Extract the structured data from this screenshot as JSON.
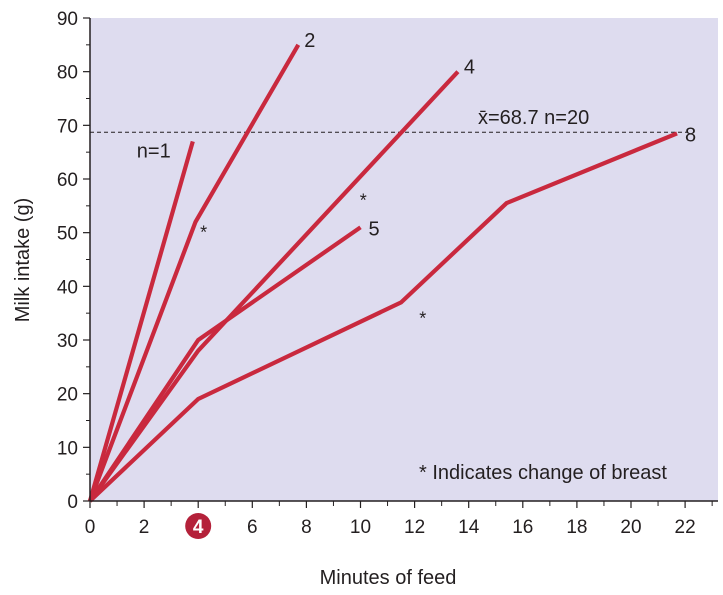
{
  "chart_data": {
    "type": "line",
    "xlabel": "Minutes of feed",
    "ylabel": "Milk intake (g)",
    "xlim": [
      0,
      23
    ],
    "ylim": [
      0,
      90
    ],
    "x_ticks": [
      0,
      2,
      4,
      6,
      8,
      10,
      12,
      14,
      16,
      18,
      20,
      22
    ],
    "y_ticks": [
      0,
      10,
      20,
      30,
      40,
      50,
      60,
      70,
      80,
      90
    ],
    "highlighted_x_tick": 4,
    "grid": false,
    "series": [
      {
        "name": "n=1",
        "points": [
          [
            0,
            0
          ],
          [
            3.8,
            67
          ]
        ]
      },
      {
        "name": "2",
        "points": [
          [
            0,
            0
          ],
          [
            3.9,
            52
          ],
          [
            7.7,
            85
          ]
        ]
      },
      {
        "name": "4",
        "points": [
          [
            0,
            0
          ],
          [
            4.0,
            28
          ],
          [
            13.6,
            80
          ]
        ]
      },
      {
        "name": "5",
        "points": [
          [
            0,
            0
          ],
          [
            4.0,
            30
          ],
          [
            10.0,
            51
          ]
        ]
      },
      {
        "name": "8",
        "points": [
          [
            0,
            0
          ],
          [
            4.0,
            19
          ],
          [
            11.5,
            37
          ],
          [
            15.4,
            55.5
          ],
          [
            21.7,
            68.5
          ]
        ]
      }
    ],
    "reference_line": {
      "y": 68.7,
      "style": "dashed",
      "label": "x̄=68.7  n=20"
    },
    "breast_change_markers": [
      {
        "x": 4.2,
        "y": 50,
        "text": "*"
      },
      {
        "x": 10.1,
        "y": 56,
        "text": "*"
      },
      {
        "x": 12.3,
        "y": 34,
        "text": "*"
      }
    ],
    "annotation": "* Indicates change of breast",
    "colors": {
      "plot_background": "#dedcef",
      "series": "#c9293e",
      "highlight_tick_fill": "#b4213a",
      "text": "#231f20"
    }
  }
}
